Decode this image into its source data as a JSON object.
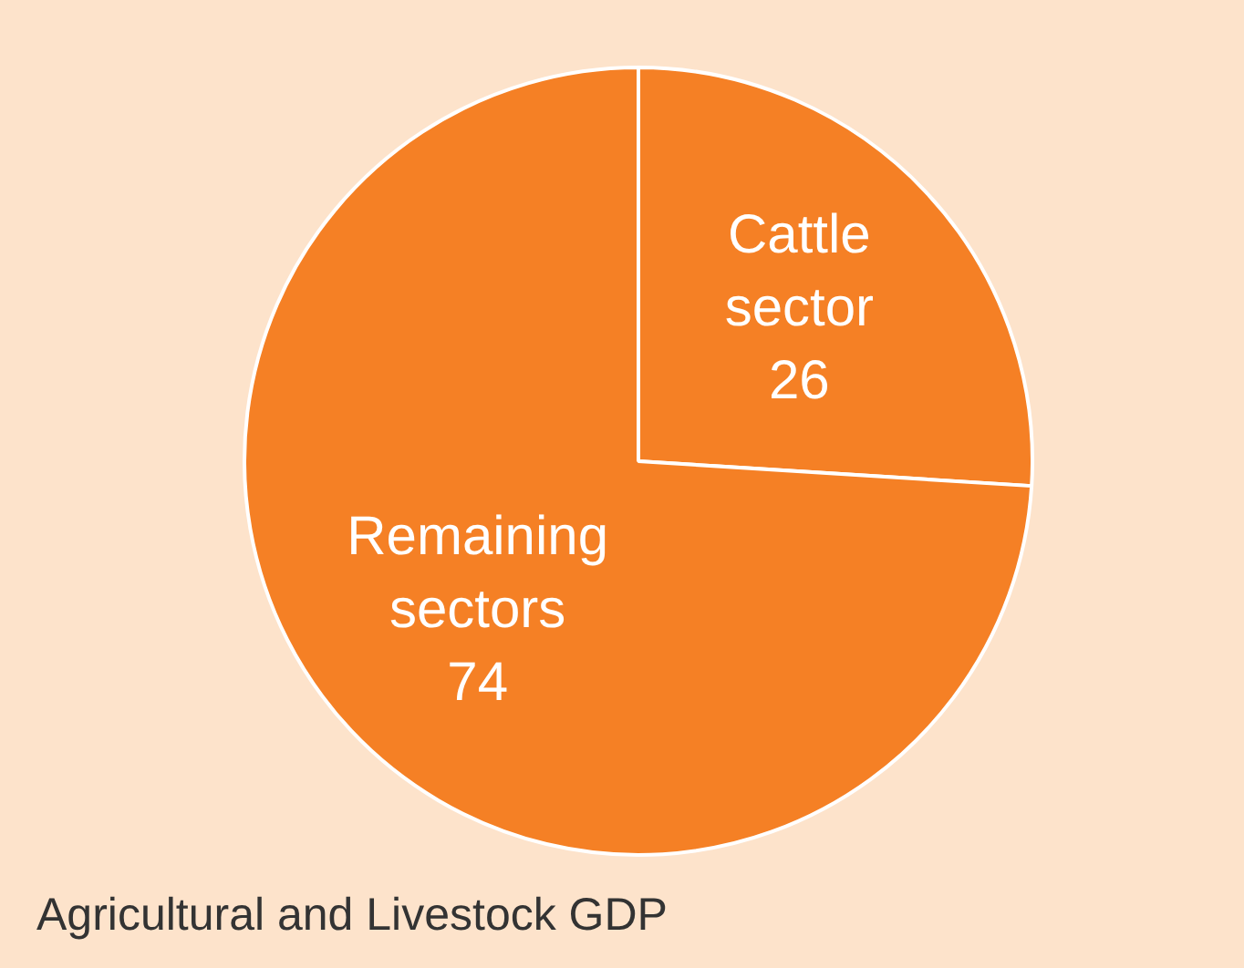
{
  "chart_data": {
    "type": "pie",
    "title": "Agricultural and Livestock GDP",
    "categories": [
      "Cattle sector",
      "Remaining sectors"
    ],
    "values": [
      26,
      74
    ],
    "colors": [
      "#f58025",
      "#f58025"
    ],
    "data_labels": true,
    "legend": false
  }
}
